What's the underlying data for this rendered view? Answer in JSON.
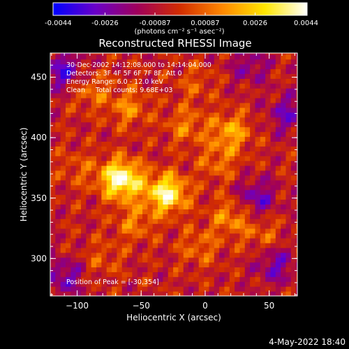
{
  "chart_data": {
    "type": "heatmap",
    "title": "Reconstructed RHESSI Image",
    "xlabel": "Heliocentric X (arcsec)",
    "ylabel": "Heliocentric Y (arcsec)",
    "xlim": [
      -121,
      72
    ],
    "ylim": [
      269,
      470
    ],
    "xticks": [
      -100,
      -50,
      0,
      50
    ],
    "yticks": [
      300,
      350,
      400,
      450
    ],
    "colorbar": {
      "ticks": [
        "-0.0044",
        "-0.0026",
        "-0.00087",
        "0.00087",
        "0.0026",
        "0.0044"
      ],
      "tick_values": [
        -0.0044,
        -0.0026,
        -0.00087,
        0.00087,
        0.0026,
        0.0044
      ],
      "range": [
        -0.0044,
        0.0044
      ],
      "unit_label": "(photons cm⁻² s⁻¹ asec⁻²)",
      "colors": [
        "#0000ff",
        "#6a00c8",
        "#a0005a",
        "#d22d00",
        "#ff8800",
        "#ffe600",
        "#ffffff"
      ]
    },
    "annotations": [
      "30-Dec-2002 14:12:08.000 to 14:14:04.000",
      "Detectors: 3F 4F 5F 6F 7F 8F, Att 0",
      "Energy Range: 6.0 - 12.0 keV",
      "Clean     Total counts: 9.68E+03"
    ],
    "peak_label": "Position of Peak = [-30,354]",
    "peak": [
      -30,
      354
    ],
    "sources": [
      {
        "x": -30,
        "y": 354,
        "value": 0.0044
      },
      {
        "x": -68,
        "y": 367,
        "value": 0.003
      },
      {
        "x": -62,
        "y": 364,
        "value": 0.0022
      },
      {
        "x": 20,
        "y": 405,
        "value": 0.0024
      },
      {
        "x": -15,
        "y": 410,
        "value": 0.0016
      },
      {
        "x": -60,
        "y": 425,
        "value": 0.0018
      },
      {
        "x": -90,
        "y": 440,
        "value": 0.0016
      },
      {
        "x": -8,
        "y": 445,
        "value": 0.001
      },
      {
        "x": 10,
        "y": 380,
        "value": 0.0014
      },
      {
        "x": 20,
        "y": 335,
        "value": 0.002
      },
      {
        "x": -55,
        "y": 330,
        "value": 0.0016
      },
      {
        "x": -5,
        "y": 310,
        "value": 0.0014
      },
      {
        "x": -80,
        "y": 300,
        "value": 0.001
      },
      {
        "x": -100,
        "y": 375,
        "value": 0.001
      },
      {
        "x": 45,
        "y": 320,
        "value": 0.0012
      }
    ],
    "negative_regions": [
      {
        "x": -110,
        "y": 455,
        "value": -0.0026
      },
      {
        "x": 65,
        "y": 420,
        "value": -0.002
      },
      {
        "x": 40,
        "y": 350,
        "value": -0.0022
      },
      {
        "x": -110,
        "y": 285,
        "value": -0.002
      },
      {
        "x": 55,
        "y": 295,
        "value": -0.002
      },
      {
        "x": 35,
        "y": 460,
        "value": -0.0015
      }
    ]
  },
  "footer": {
    "date": "4-May-2022 18:40"
  }
}
